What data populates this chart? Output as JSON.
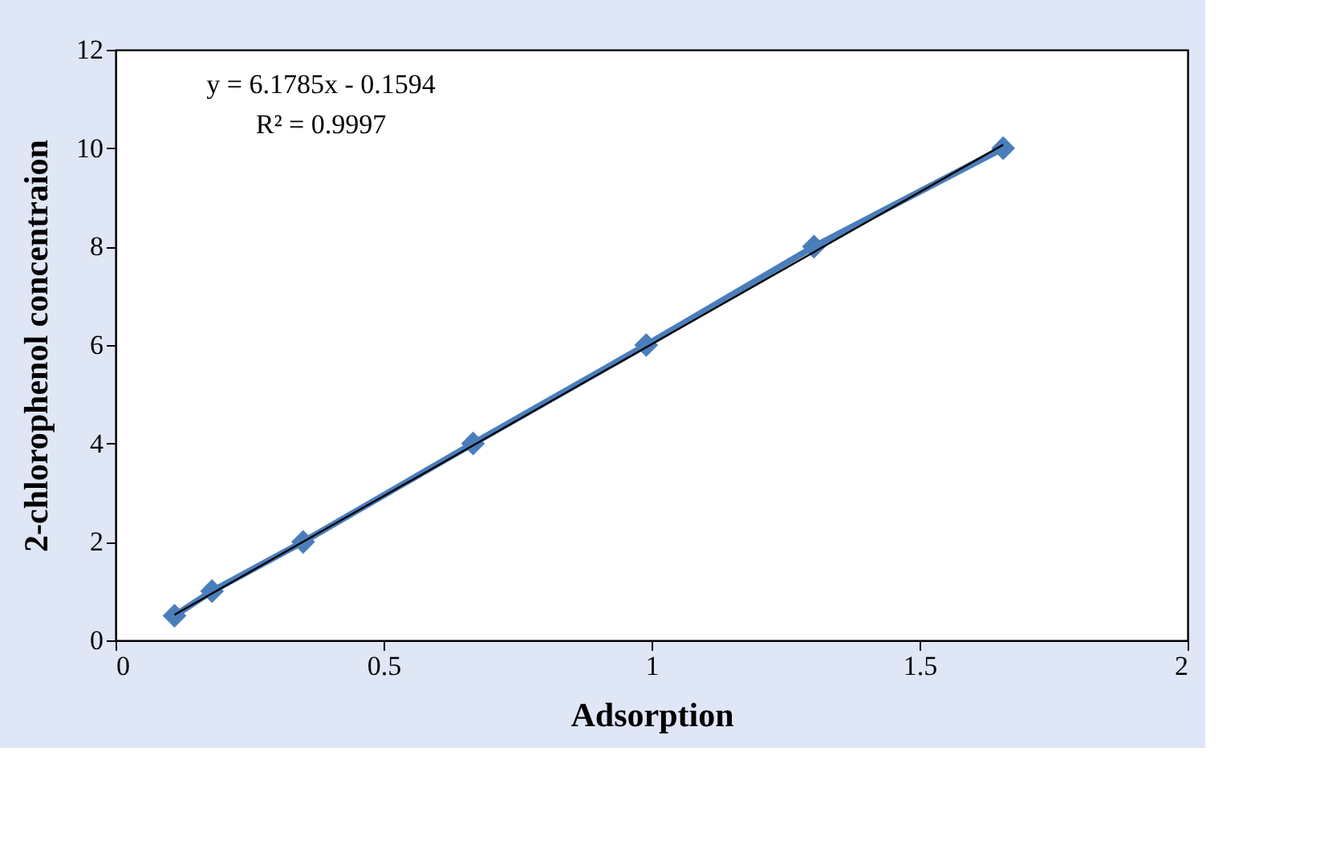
{
  "chart_data": {
    "type": "line",
    "xlabel": "Adsorption",
    "ylabel": "2-chlorophenol concentraion",
    "xlim": [
      0,
      2
    ],
    "xticks": [
      0,
      0.5,
      1,
      1.5,
      2
    ],
    "ylim": [
      0,
      12
    ],
    "yticks": [
      0,
      2,
      4,
      6,
      8,
      10,
      12
    ],
    "grid": false,
    "series": [
      {
        "color": "#4a7ebb",
        "marker": "diamond",
        "x": [
          0.11,
          0.18,
          0.35,
          0.667,
          0.99,
          1.303,
          1.656
        ],
        "values": [
          0.5,
          1,
          2,
          4,
          6,
          8,
          10
        ]
      },
      {
        "type": "line",
        "color": "#000000",
        "marker": "none",
        "x": [
          0.11,
          1.656
        ],
        "values": [
          0.52,
          10.07
        ]
      }
    ],
    "annotations": [
      "y = 6.1785x - 0.1594",
      "R² = 0.9997"
    ]
  }
}
